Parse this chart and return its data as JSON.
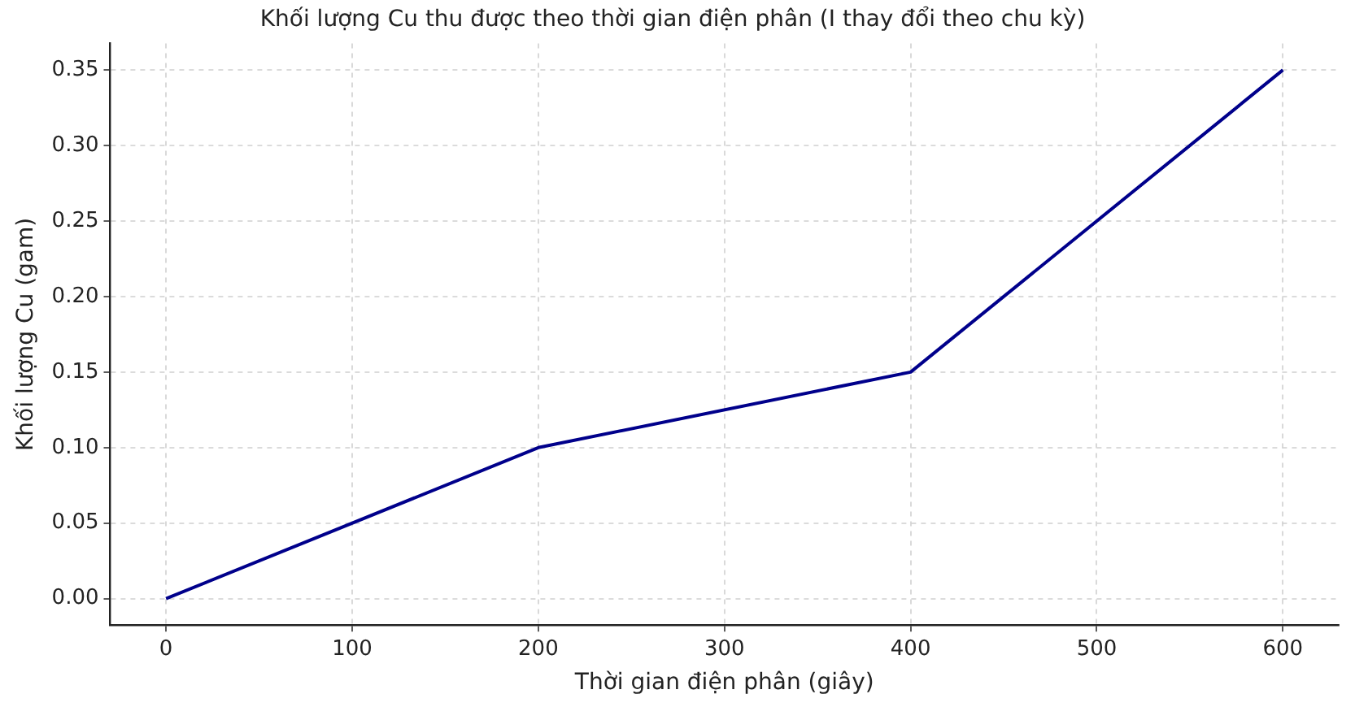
{
  "chart_data": {
    "type": "line",
    "title": "Khối lượng Cu thu được theo thời gian điện phân (I thay đổi theo chu kỳ)",
    "xlabel": "Thời gian điện phân (giây)",
    "ylabel": "Khối lượng Cu (gam)",
    "x": [
      0,
      200,
      400,
      600
    ],
    "series": [
      {
        "color": "#00008b",
        "values": [
          0,
          0.1,
          0.15,
          0.35
        ]
      }
    ],
    "xlim": [
      -30,
      630
    ],
    "xticks": [
      0,
      100,
      200,
      300,
      400,
      500,
      600
    ],
    "ylim": [
      -0.0175,
      0.3675
    ],
    "yticks": [
      {
        "value": 0,
        "label": "0.00"
      },
      {
        "value": 0.05,
        "label": "0.05"
      },
      {
        "value": 0.1,
        "label": "0.10"
      },
      {
        "value": 0.15,
        "label": "0.15"
      },
      {
        "value": 0.2,
        "label": "0.20"
      },
      {
        "value": 0.25,
        "label": "0.25"
      },
      {
        "value": 0.3,
        "label": "0.30"
      },
      {
        "value": 0.35,
        "label": "0.35"
      }
    ],
    "grid": true,
    "legend": false,
    "marker": "none",
    "line_style": "solid"
  }
}
